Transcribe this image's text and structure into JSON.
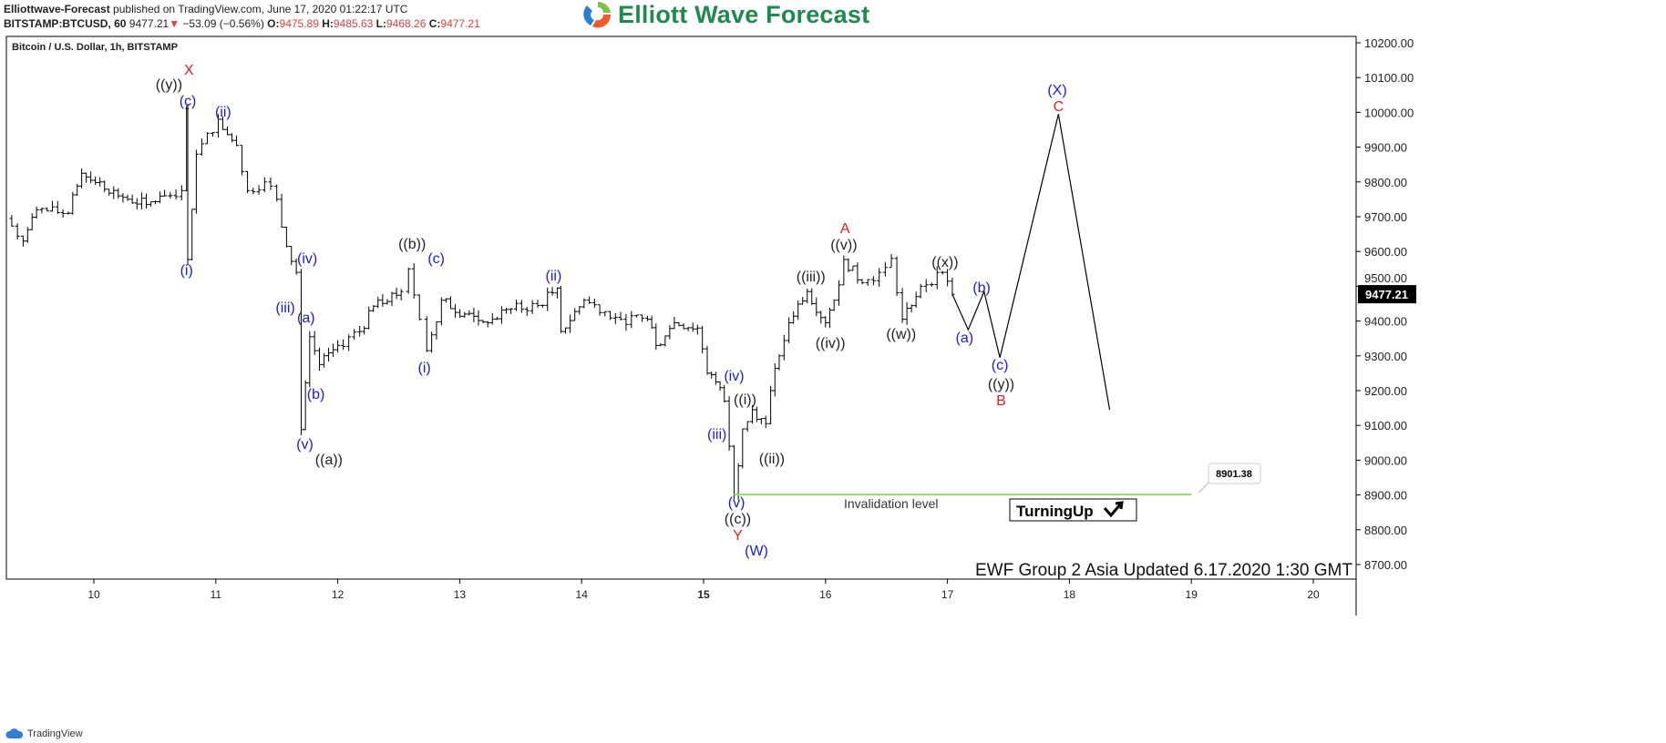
{
  "header": {
    "author": "Elliottwave-Forecast",
    "published": "published on TradingView.com, June 17, 2020 01:22:17 UTC",
    "symbol": "BITSTAMP:BTCUSD, 60",
    "last": "9477.21",
    "change": "−53.09 (−0.56%)",
    "o_label": "O:",
    "o": "9475.89",
    "h_label": "H:",
    "h": "9485.63",
    "l_label": "L:",
    "l": "9468.26",
    "c_label": "C:",
    "c": "9477.21"
  },
  "logo": {
    "text": "Elliott Wave Forecast"
  },
  "footer": {
    "brand": "TradingView"
  },
  "colors": {
    "bars": "#000000",
    "wave_blue": "#1a1ae6",
    "wave_red": "#e02020",
    "wave_black": "#222222",
    "invalidation": "#8fe06a",
    "down": "#e0403a"
  },
  "chart_data": {
    "type": "ohlc",
    "title": "Bitcoin / U.S. Dollar, 1h, BITSTAMP",
    "ylim": [
      8650,
      10220
    ],
    "xlim": [
      9.3,
      20.35
    ],
    "y_ticks": [
      "8700.00",
      "8800.00",
      "8900.00",
      "9000.00",
      "9100.00",
      "9200.00",
      "9300.00",
      "9400.00",
      "9500.00",
      "9600.00",
      "9700.00",
      "9800.00",
      "9900.00",
      "10000.00",
      "10100.00",
      "10200.00"
    ],
    "x_ticks": [
      "10",
      "11",
      "12",
      "13",
      "14",
      "15",
      "16",
      "17",
      "18",
      "19",
      "20"
    ],
    "x_tick_bold": "15",
    "last_price": 9477.21,
    "last_price_label": "9477.21",
    "price_path": [
      [
        9.28,
        9695
      ],
      [
        9.42,
        9630
      ],
      [
        9.53,
        9720
      ],
      [
        9.79,
        9710
      ],
      [
        9.9,
        9825
      ],
      [
        10.05,
        9800
      ],
      [
        10.2,
        9760
      ],
      [
        10.43,
        9735
      ],
      [
        10.58,
        9760
      ],
      [
        10.72,
        9775
      ],
      [
        10.76,
        10010
      ],
      [
        10.77,
        9577
      ],
      [
        10.84,
        9880
      ],
      [
        11.02,
        9980
      ],
      [
        11.17,
        9905
      ],
      [
        11.26,
        9775
      ],
      [
        11.4,
        9800
      ],
      [
        11.5,
        9750
      ],
      [
        11.58,
        9615
      ],
      [
        11.66,
        9540
      ],
      [
        11.7,
        9088
      ],
      [
        11.77,
        9355
      ],
      [
        11.85,
        9275
      ],
      [
        12.0,
        9330
      ],
      [
        12.18,
        9370
      ],
      [
        12.33,
        9460
      ],
      [
        12.52,
        9485
      ],
      [
        12.58,
        9550
      ],
      [
        12.67,
        9405
      ],
      [
        12.73,
        9315
      ],
      [
        12.85,
        9460
      ],
      [
        13.04,
        9420
      ],
      [
        13.23,
        9395
      ],
      [
        13.42,
        9435
      ],
      [
        13.64,
        9445
      ],
      [
        13.8,
        9495
      ],
      [
        13.83,
        9370
      ],
      [
        14.02,
        9460
      ],
      [
        14.32,
        9405
      ],
      [
        14.54,
        9405
      ],
      [
        14.61,
        9330
      ],
      [
        14.76,
        9395
      ],
      [
        14.95,
        9380
      ],
      [
        15.03,
        9250
      ],
      [
        15.1,
        9225
      ],
      [
        15.17,
        9170
      ],
      [
        15.21,
        9040
      ],
      [
        15.25,
        8901
      ],
      [
        15.32,
        9090
      ],
      [
        15.4,
        9145
      ],
      [
        15.51,
        9105
      ],
      [
        15.55,
        9200
      ],
      [
        15.62,
        9300
      ],
      [
        15.7,
        9395
      ],
      [
        15.85,
        9485
      ],
      [
        16.0,
        9395
      ],
      [
        16.07,
        9460
      ],
      [
        16.15,
        9577
      ],
      [
        16.3,
        9510
      ],
      [
        16.44,
        9540
      ],
      [
        16.54,
        9580
      ],
      [
        16.63,
        9405
      ],
      [
        16.78,
        9500
      ],
      [
        16.96,
        9540
      ],
      [
        17.04,
        9477
      ]
    ],
    "projection": [
      [
        17.04,
        9477
      ],
      [
        17.17,
        9375
      ],
      [
        17.3,
        9485
      ],
      [
        17.43,
        9295
      ],
      [
        17.91,
        9995
      ],
      [
        18.33,
        9145
      ]
    ],
    "invalidation": {
      "price": 8901.38,
      "label": "8901.38",
      "text": "Invalidation level",
      "from_day": 15.25,
      "to_day": 19.0
    },
    "badge": {
      "text": "TurningUp",
      "icon": "arrow-check-up-icon"
    },
    "update_note": "EWF Group 2 Asia Updated 6.17.2020 1:30 GMT",
    "wave_labels": [
      {
        "t": "X",
        "c": "red",
        "d": 10.78,
        "p": 10124
      },
      {
        "t": "((y))",
        "c": "black",
        "d": 10.78,
        "p": 10082
      },
      {
        "t": "(c)",
        "c": "blue",
        "d": 10.77,
        "p": 10035
      },
      {
        "t": "(i)",
        "c": "blue",
        "d": 10.76,
        "p": 9548
      },
      {
        "t": "(ii)",
        "c": "blue",
        "d": 11.06,
        "p": 10004
      },
      {
        "t": "(iv)",
        "c": "blue",
        "d": 11.75,
        "p": 9582
      },
      {
        "t": "(iii)",
        "c": "blue",
        "d": 11.57,
        "p": 9441
      },
      {
        "t": "(a)",
        "c": "blue",
        "d": 11.74,
        "p": 9412
      },
      {
        "t": "(b)",
        "c": "blue",
        "d": 11.82,
        "p": 9192
      },
      {
        "t": "(v)",
        "c": "blue",
        "d": 11.73,
        "p": 9048
      },
      {
        "t": "((a))",
        "c": "black",
        "d": 11.73,
        "p": 9004
      },
      {
        "t": "((b))",
        "c": "black",
        "d": 12.61,
        "p": 9624
      },
      {
        "t": "(c)",
        "c": "blue",
        "d": 12.61,
        "p": 9582
      },
      {
        "t": "(i)",
        "c": "blue",
        "d": 12.71,
        "p": 9268
      },
      {
        "t": "(ii)",
        "c": "blue",
        "d": 13.77,
        "p": 9532
      },
      {
        "t": "(iv)",
        "c": "blue",
        "d": 15.25,
        "p": 9244
      },
      {
        "t": "((i))",
        "c": "black",
        "d": 15.34,
        "p": 9176
      },
      {
        "t": "(iii)",
        "c": "blue",
        "d": 15.11,
        "p": 9077
      },
      {
        "t": "((ii))",
        "c": "black",
        "d": 15.56,
        "p": 9006
      },
      {
        "t": "(v)",
        "c": "blue",
        "d": 15.27,
        "p": 8881
      },
      {
        "t": "((c))",
        "c": "black",
        "d": 15.28,
        "p": 8833
      },
      {
        "t": "Y",
        "c": "red",
        "d": 15.28,
        "p": 8786
      },
      {
        "t": "(W)",
        "c": "blue",
        "d": 15.29,
        "p": 8742
      },
      {
        "t": "((iii))",
        "c": "black",
        "d": 15.88,
        "p": 9530
      },
      {
        "t": "((iv))",
        "c": "black",
        "d": 16.04,
        "p": 9339
      },
      {
        "t": "A",
        "c": "red",
        "d": 16.16,
        "p": 9669
      },
      {
        "t": "((v))",
        "c": "black",
        "d": 16.15,
        "p": 9621
      },
      {
        "t": "((w))",
        "c": "black",
        "d": 16.62,
        "p": 9365
      },
      {
        "t": "((x))",
        "c": "black",
        "d": 16.98,
        "p": 9572
      },
      {
        "t": "(b)",
        "c": "blue",
        "d": 17.28,
        "p": 9498
      },
      {
        "t": "(a)",
        "c": "blue",
        "d": 17.14,
        "p": 9354
      },
      {
        "t": "(c)",
        "c": "blue",
        "d": 17.43,
        "p": 9276
      },
      {
        "t": "((y))",
        "c": "black",
        "d": 17.44,
        "p": 9221
      },
      {
        "t": "B",
        "c": "red",
        "d": 17.44,
        "p": 9174
      },
      {
        "t": "(X)",
        "c": "blue",
        "d": 17.9,
        "p": 10066
      },
      {
        "t": "C",
        "c": "red",
        "d": 17.91,
        "p": 10019
      }
    ]
  }
}
